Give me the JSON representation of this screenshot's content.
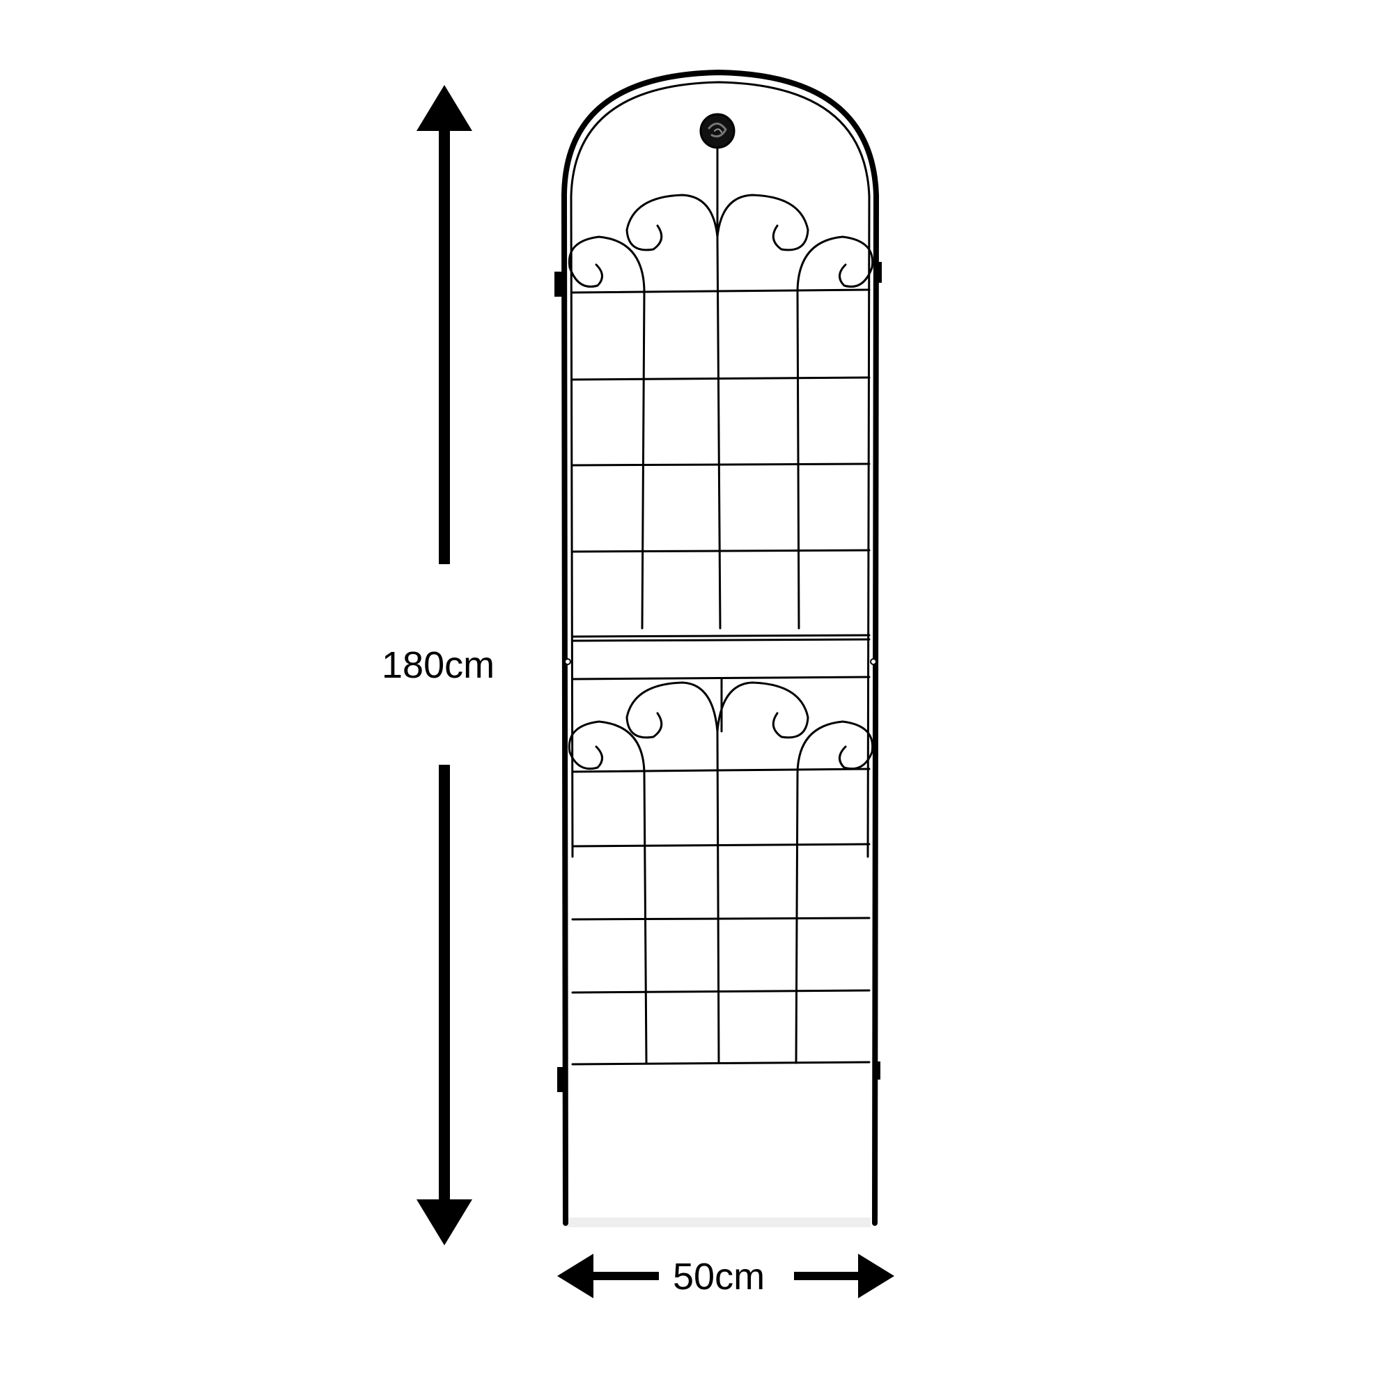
{
  "dimensions": {
    "height_label": "180cm",
    "width_label": "50cm"
  },
  "colors": {
    "background": "#ffffff",
    "ink": "#000000"
  },
  "subject": {
    "icon": "garden-trellis-icon"
  }
}
